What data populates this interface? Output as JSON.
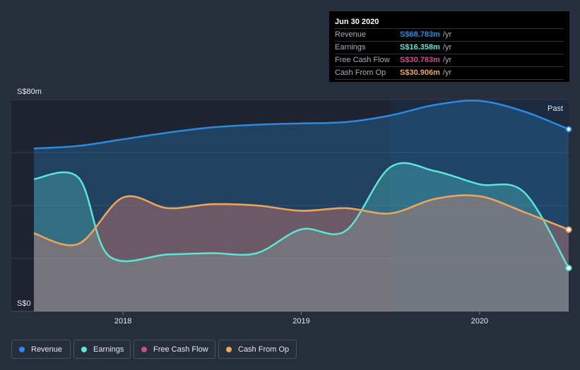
{
  "chart_data": {
    "type": "area",
    "y_axis": {
      "min": 0,
      "max": 80,
      "top_label": "S$80m",
      "bottom_label": "S$0"
    },
    "x_axis": {
      "min": 2017.5,
      "max": 2020.5,
      "ticks": [
        {
          "value": 2018,
          "label": "2018"
        },
        {
          "value": 2019,
          "label": "2019"
        },
        {
          "value": 2020,
          "label": "2020"
        }
      ]
    },
    "past_region": {
      "start": 2019.5,
      "label": "Past"
    },
    "grid": true,
    "series": [
      {
        "name": "Revenue",
        "color": "#2a8be0",
        "x": [
          2017.5,
          2017.75,
          2018.0,
          2018.25,
          2018.5,
          2018.75,
          2019.0,
          2019.25,
          2019.5,
          2019.75,
          2020.0,
          2020.25,
          2020.5
        ],
        "values": [
          61.5,
          62.5,
          65,
          67.5,
          69.5,
          70.5,
          71,
          71.5,
          74,
          78,
          79.5,
          75.5,
          68.8
        ]
      },
      {
        "name": "Earnings",
        "color": "#5ce6d6",
        "x": [
          2017.5,
          2017.75,
          2017.92,
          2018.25,
          2018.5,
          2018.75,
          2019.0,
          2019.25,
          2019.5,
          2019.75,
          2020.0,
          2020.25,
          2020.5
        ],
        "values": [
          50,
          50.5,
          21,
          21.5,
          22,
          22,
          31,
          30.5,
          54.5,
          53,
          48,
          45,
          16.4
        ]
      },
      {
        "name": "Free Cash Flow",
        "color": "#d04c8c",
        "x": [
          2017.5,
          2017.75,
          2018.0,
          2018.25,
          2018.5,
          2018.75,
          2019.0,
          2019.25,
          2019.5,
          2019.75,
          2020.0,
          2020.25,
          2020.5
        ],
        "values": [
          29.5,
          25.5,
          43,
          39,
          40.5,
          40,
          38,
          39,
          37,
          42.5,
          43.5,
          37.5,
          30.8
        ]
      },
      {
        "name": "Cash From Op",
        "color": "#e8a85a",
        "x": [
          2017.5,
          2017.75,
          2018.0,
          2018.25,
          2018.5,
          2018.75,
          2019.0,
          2019.25,
          2019.5,
          2019.75,
          2020.0,
          2020.25,
          2020.5
        ],
        "values": [
          29.5,
          25.5,
          43,
          39,
          40.5,
          40,
          38,
          39,
          37,
          42.5,
          43.5,
          37.5,
          30.9
        ]
      }
    ]
  },
  "tooltip": {
    "date": "Jun 30 2020",
    "rows": [
      {
        "label": "Revenue",
        "value": "S$68.783m",
        "unit": "/yr",
        "color": "#2a8be0"
      },
      {
        "label": "Earnings",
        "value": "S$16.358m",
        "unit": "/yr",
        "color": "#5ce6d6"
      },
      {
        "label": "Free Cash Flow",
        "value": "S$30.783m",
        "unit": "/yr",
        "color": "#d04c8c"
      },
      {
        "label": "Cash From Op",
        "value": "S$30.906m",
        "unit": "/yr",
        "color": "#e8a85a"
      }
    ]
  },
  "legend": [
    {
      "label": "Revenue",
      "color": "#2a8be0"
    },
    {
      "label": "Earnings",
      "color": "#5ce6d6"
    },
    {
      "label": "Free Cash Flow",
      "color": "#d04c8c"
    },
    {
      "label": "Cash From Op",
      "color": "#e8a85a"
    }
  ]
}
